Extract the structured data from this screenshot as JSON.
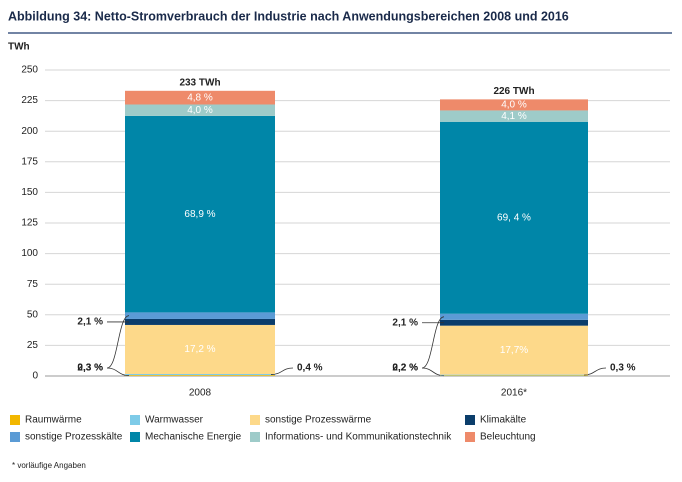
{
  "chart_data": {
    "type": "stacked_bar",
    "title": "Abbildung 34: Netto-Stromverbrauch der Industrie nach Anwendungsbereichen 2008 und 2016",
    "y_label": "TWh",
    "categories": [
      "2008",
      "2016*"
    ],
    "total_labels": [
      "233 TWh",
      "226 TWh"
    ],
    "series": [
      {
        "name": "Raumwärme",
        "color": "#f2b700",
        "values": [
          0.7,
          0.45
        ],
        "value_labels": [
          "0,3 %",
          "0,2 %"
        ]
      },
      {
        "name": "Warmwasser",
        "color": "#7ecbe8",
        "values": [
          0.93,
          0.68
        ],
        "value_labels": [
          "0,4 %",
          "0,3 %"
        ]
      },
      {
        "name": "sonstige Prozesswärme",
        "color": "#fdd98a",
        "values": [
          40.08,
          40.0
        ],
        "value_labels": [
          "17,2 %",
          "17,7%"
        ]
      },
      {
        "name": "Klimakälte",
        "color": "#0b3d6b",
        "values": [
          4.89,
          4.75
        ],
        "value_labels": [
          "2,1 %",
          "2,1 %"
        ]
      },
      {
        "name": "sonstige Prozesskälte",
        "color": "#5b9bd5",
        "values": [
          5.36,
          4.97
        ],
        "value_labels": [
          "2,3 %",
          "2,2 %"
        ]
      },
      {
        "name": "Mechanische Energie",
        "color": "#0086a8",
        "values": [
          160.54,
          156.84
        ],
        "value_labels": [
          "68,9 %",
          "69, 4 %"
        ]
      },
      {
        "name": "Informations- und Kommunikationstechnik",
        "color": "#9ecbc9",
        "values": [
          9.32,
          9.27
        ],
        "value_labels": [
          "4,0 %",
          "4,1 %"
        ]
      },
      {
        "name": "Beleuchtung",
        "color": "#ee8a6a",
        "values": [
          11.18,
          9.04
        ],
        "value_labels": [
          "4,8 %",
          "4,0 %"
        ]
      }
    ],
    "ylim": [
      0,
      250
    ],
    "yticks": [
      0,
      25,
      50,
      75,
      100,
      125,
      150,
      175,
      200,
      225,
      250
    ],
    "grid": true,
    "footnote": "* vorläufige Angaben"
  }
}
